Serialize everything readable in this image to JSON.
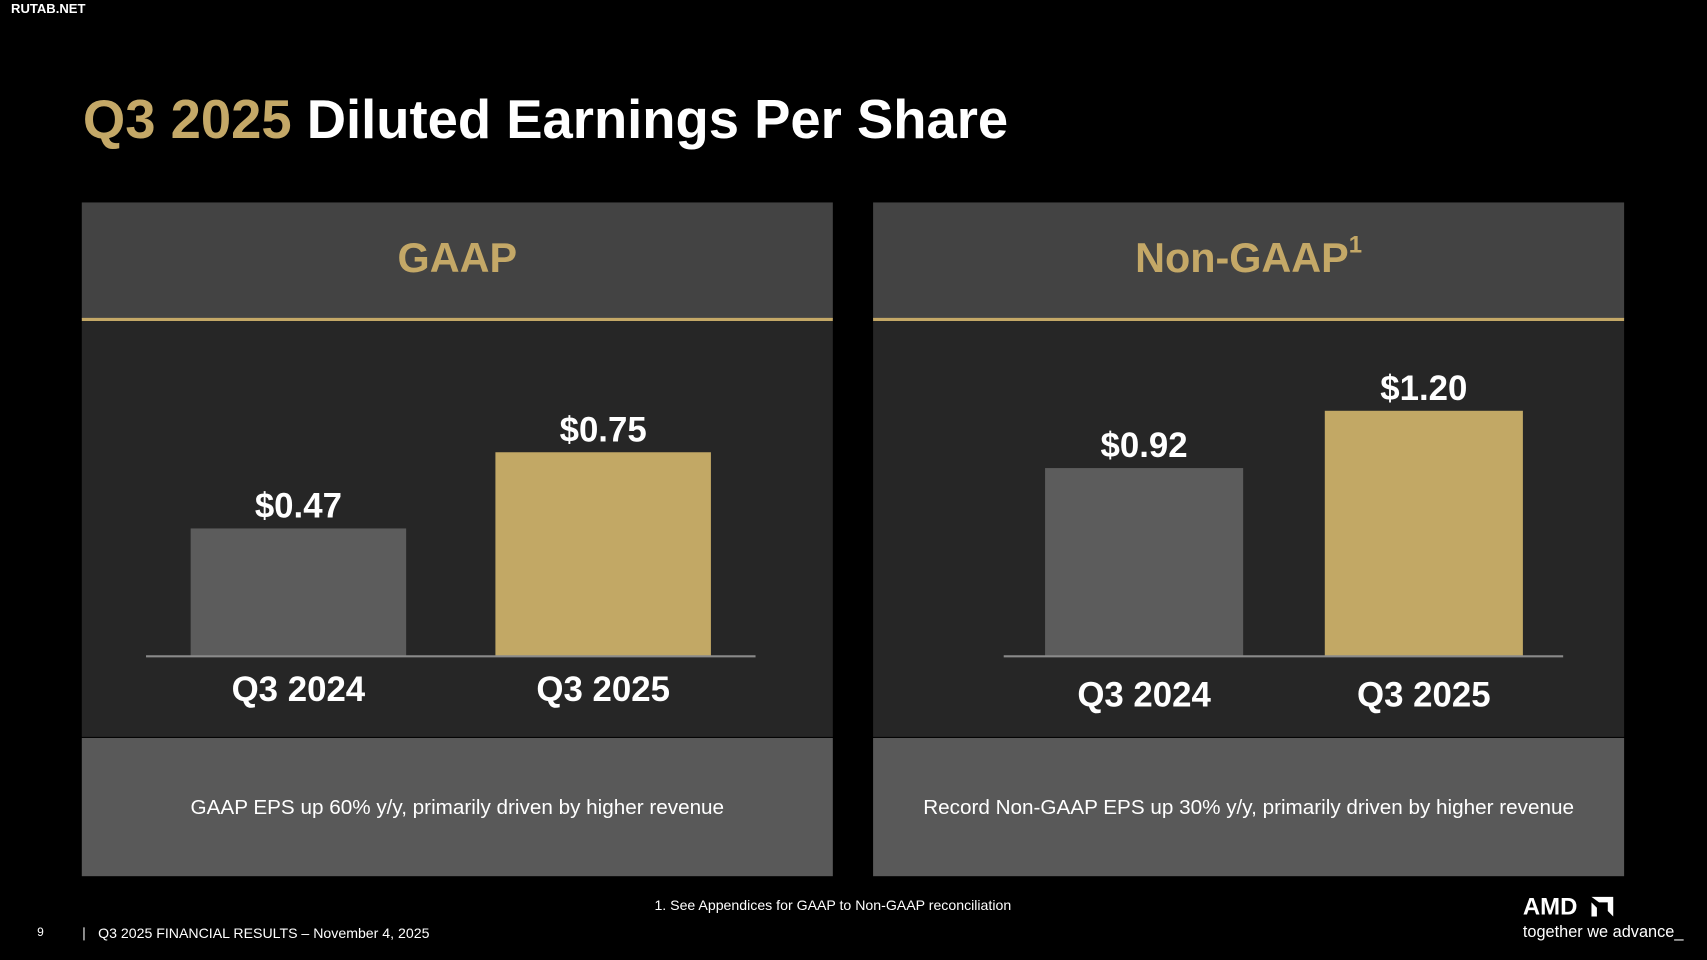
{
  "watermark": "RUTAB.NET",
  "title_highlight": "Q3 2025",
  "title": "Diluted Earnings Per Share",
  "chart_data": [
    {
      "type": "bar",
      "header": "GAAP",
      "categories": [
        "Q3 2024",
        "Q3 2025"
      ],
      "values": [
        0.47,
        0.75
      ],
      "value_labels": [
        "$0.47",
        "$0.75"
      ],
      "colors": [
        "#5c5c5c",
        "#c2a865"
      ],
      "caption": "GAAP EPS up 60% y/y, primarily driven by higher revenue"
    },
    {
      "type": "bar",
      "header": "Non-GAAP",
      "header_note": "1",
      "categories": [
        "Q3 2024",
        "Q3 2025"
      ],
      "values": [
        0.92,
        1.2
      ],
      "value_labels": [
        "$0.92",
        "$1.20"
      ],
      "colors": [
        "#5c5c5c",
        "#c2a865"
      ],
      "caption": "Record Non-GAAP EPS up 30% y/y, primarily driven by higher revenue"
    }
  ],
  "footnote": "1. See Appendices for GAAP to Non-GAAP reconciliation",
  "footer": {
    "page": "9",
    "text": "Q3 2025 FINANCIAL RESULTS – November 4, 2025"
  },
  "logo": {
    "name": "AMD",
    "tagline": "together we advance_"
  }
}
